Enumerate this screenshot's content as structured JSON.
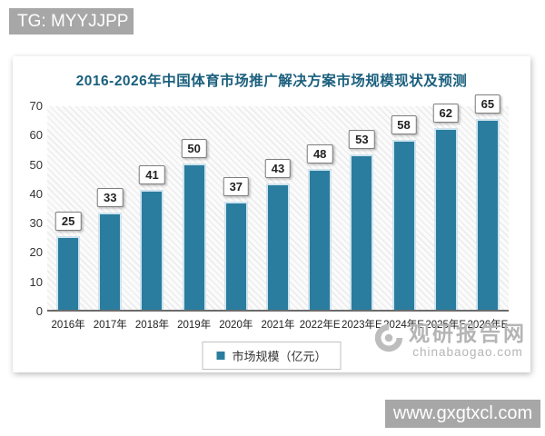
{
  "overlays": {
    "tg_badge": "TG: MYYJJPP",
    "site_badge": "www.gxgtxcl.com"
  },
  "watermark": {
    "brand": "观研报告网",
    "domain": "chinabaogao.com"
  },
  "chart_data": {
    "type": "bar",
    "title": "2016-2026年中国体育市场推广解决方案市场规模现状及预测",
    "categories": [
      "2016年",
      "2017年",
      "2018年",
      "2019年",
      "2020年",
      "2021年",
      "2022年E",
      "2023年E",
      "2024年E",
      "2025年E",
      "2026年E"
    ],
    "values": [
      25,
      33,
      41,
      50,
      37,
      43,
      48,
      53,
      58,
      62,
      65
    ],
    "legend": [
      "市场规模（亿元）"
    ],
    "legend_position": "bottom",
    "xlabel": "",
    "ylabel": "",
    "ylim": [
      0,
      70
    ],
    "yticks": [
      0,
      10,
      20,
      30,
      40,
      50,
      60,
      70
    ],
    "grid": false,
    "data_labels": true,
    "colors": {
      "bar": "#2a7d9e",
      "bar_edge": "#cfe4ef",
      "title": "#1a5f7d",
      "badge_bg": "#a7a7a7",
      "watermark": "#b5b5b5"
    }
  }
}
